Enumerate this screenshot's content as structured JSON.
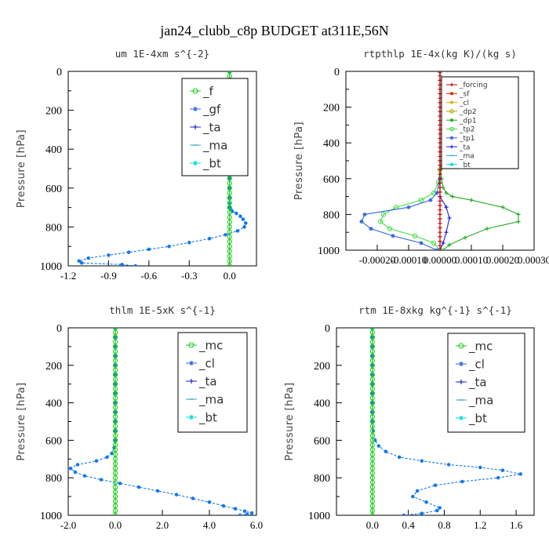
{
  "figure": {
    "title": "jan24_clubb_c8p  BUDGET at311E,56N"
  },
  "chart_data": [
    {
      "type": "line",
      "title": "um   1E-4xm s^{-2}",
      "ylabel": "Pressure [hPa]",
      "xlim": [
        -1.2,
        0.2
      ],
      "ylim": [
        1000,
        0
      ],
      "xticks": [
        -1.2,
        -0.9,
        -0.6,
        -0.3,
        0.0
      ],
      "xtick_labels": [
        "-1.2",
        "-0.9",
        "-0.6",
        "-0.3",
        "0.0"
      ],
      "yticks": [
        0,
        200,
        400,
        600,
        800,
        1000
      ],
      "ytick_labels": [
        "0",
        "200",
        "400",
        "600",
        "800",
        "1000"
      ],
      "legend": {
        "position": "top-right",
        "font_size": 15,
        "entries": [
          {
            "label": "_f",
            "color": "#22cc22",
            "marker": "circle"
          },
          {
            "label": "_gf",
            "color": "#3366dd",
            "marker": "star"
          },
          {
            "label": "_ta",
            "color": "#2222cc",
            "marker": "plus"
          },
          {
            "label": "_ma",
            "color": "#33aacc",
            "marker": "dash"
          },
          {
            "label": "_bt",
            "color": "#00dddd",
            "marker": "star"
          }
        ]
      },
      "series": [
        {
          "label": "_ma",
          "color": "#1177ee",
          "marker": "dot",
          "x": [
            0,
            0,
            0,
            0,
            0,
            0,
            0,
            0,
            0,
            0,
            0,
            0,
            0,
            0,
            0,
            0,
            0.01,
            0.02,
            0.05,
            0.08,
            0.1,
            0.12,
            0.11,
            0.06,
            -0.03,
            -0.15,
            -0.3,
            -0.45,
            -0.6,
            -0.75,
            -0.9,
            -1.05,
            -1.12,
            -1.1,
            -0.8,
            -0.7
          ],
          "y": [
            0,
            50,
            100,
            150,
            200,
            250,
            300,
            350,
            400,
            450,
            500,
            550,
            600,
            650,
            680,
            700,
            710,
            720,
            730,
            745,
            760,
            780,
            800,
            820,
            840,
            860,
            880,
            900,
            915,
            930,
            945,
            960,
            975,
            985,
            993,
            1000
          ]
        },
        {
          "label": "_f",
          "color": "#22cc22",
          "marker": "circle",
          "x": [
            0,
            0,
            0,
            0,
            0,
            0,
            0,
            0,
            0,
            0,
            0,
            0,
            0,
            0,
            0,
            0,
            0,
            0,
            0,
            0,
            0,
            0,
            0,
            0,
            0,
            0,
            0,
            0,
            0,
            0,
            0,
            0,
            0,
            0,
            0,
            0,
            0,
            0,
            0,
            0,
            0
          ],
          "y": [
            0,
            25,
            50,
            75,
            100,
            125,
            150,
            175,
            200,
            225,
            250,
            275,
            300,
            325,
            350,
            375,
            400,
            425,
            450,
            475,
            500,
            525,
            550,
            575,
            600,
            625,
            650,
            675,
            700,
            725,
            750,
            775,
            800,
            825,
            850,
            875,
            900,
            925,
            950,
            975,
            1000
          ]
        }
      ]
    },
    {
      "type": "line",
      "title": "rtpthlp   1E-4x(kg K)/(kg s)",
      "ylabel": "Pressure [hPa]",
      "xlim": [
        -0.0003,
        0.0003
      ],
      "ylim": [
        1000,
        0
      ],
      "xticks": [
        -0.0002,
        -0.0001,
        0.0,
        0.0001,
        0.0002,
        0.0003
      ],
      "xtick_labels": [
        "-0.00020",
        "-0.00010",
        "0.00000",
        "0.00010",
        "0.00020",
        "0.00030"
      ],
      "yticks": [
        0,
        200,
        400,
        600,
        800,
        1000
      ],
      "ytick_labels": [
        "0",
        "200",
        "400",
        "600",
        "800",
        "1000"
      ],
      "legend": {
        "position": "top-right",
        "font_size": 9,
        "entries": [
          {
            "label": "_forcing",
            "color": "#cc0000",
            "marker": "plus"
          },
          {
            "label": "_sf",
            "color": "#ee2200",
            "marker": "star"
          },
          {
            "label": "_cl",
            "color": "#eeaa00",
            "marker": "star"
          },
          {
            "label": "_dp2",
            "color": "#aaaa00",
            "marker": "circle"
          },
          {
            "label": "_dp1",
            "color": "#22aa22",
            "marker": "star"
          },
          {
            "label": "_tp2",
            "color": "#44dd44",
            "marker": "circle"
          },
          {
            "label": "_tp1",
            "color": "#3366dd",
            "marker": "star"
          },
          {
            "label": "_ta",
            "color": "#2222cc",
            "marker": "plus"
          },
          {
            "label": "_ma",
            "color": "#33aacc",
            "marker": "dash"
          },
          {
            "label": "_bt",
            "color": "#00dddd",
            "marker": "star"
          }
        ]
      },
      "series": [
        {
          "label": "_dp1",
          "color": "#22aa22",
          "marker": "plus",
          "x": [
            0,
            0,
            5e-06,
            1e-05,
            2e-05,
            4e-05,
            0.0001,
            0.0002,
            0.00025,
            0.00025,
            0.00015,
            8e-05,
            3e-05,
            1e-05
          ],
          "y": [
            0,
            500,
            600,
            650,
            680,
            700,
            720,
            760,
            800,
            840,
            880,
            930,
            970,
            1000
          ]
        },
        {
          "label": "_tp2",
          "color": "#44dd44",
          "marker": "circle",
          "x": [
            0,
            0,
            -5e-06,
            -2e-05,
            -6e-05,
            -0.00014,
            -0.00018,
            -0.00019,
            -0.00016,
            -8e-05,
            -2e-05,
            0
          ],
          "y": [
            0,
            550,
            620,
            680,
            720,
            760,
            800,
            840,
            880,
            920,
            960,
            1000
          ]
        },
        {
          "label": "_tp1",
          "color": "#3366dd",
          "marker": "star",
          "x": [
            0,
            0,
            -1e-05,
            -3e-05,
            -0.0001,
            -0.00024,
            -0.00025,
            -0.00022,
            -0.00015,
            -6e-05,
            -1e-05
          ],
          "y": [
            0,
            600,
            680,
            720,
            760,
            800,
            840,
            880,
            920,
            960,
            1000
          ]
        },
        {
          "label": "_ta",
          "color": "#2222cc",
          "marker": "plus",
          "x": [
            0,
            0,
            2e-05,
            3e-05,
            2e-05,
            1e-05,
            0
          ],
          "y": [
            0,
            700,
            760,
            820,
            900,
            960,
            1000
          ]
        },
        {
          "label": "_forcing",
          "color": "#cc0000",
          "marker": "plus",
          "x": [
            0,
            0,
            0,
            0,
            0,
            0,
            0,
            0,
            0,
            0,
            0,
            0,
            0,
            0,
            0,
            0,
            0,
            0,
            0,
            0,
            0,
            0,
            0,
            0,
            0,
            0,
            0,
            0,
            0,
            0,
            0,
            0,
            0,
            0,
            0,
            0,
            0,
            0,
            0,
            0,
            0
          ],
          "y": [
            0,
            25,
            50,
            75,
            100,
            125,
            150,
            175,
            200,
            225,
            250,
            275,
            300,
            325,
            350,
            375,
            400,
            425,
            450,
            475,
            500,
            525,
            550,
            575,
            600,
            625,
            650,
            675,
            700,
            725,
            750,
            775,
            800,
            825,
            850,
            875,
            900,
            925,
            950,
            975,
            1000
          ]
        }
      ]
    },
    {
      "type": "line",
      "title": "thlm   1E-5xK s^{-1}",
      "ylabel": "Pressure [hPa]",
      "xlim": [
        -2.0,
        6.0
      ],
      "ylim": [
        1000,
        0
      ],
      "xticks": [
        -2.0,
        0.0,
        2.0,
        4.0,
        6.0
      ],
      "xtick_labels": [
        "-2.0",
        "0.0",
        "2.0",
        "4.0",
        "6.0"
      ],
      "yticks": [
        0,
        200,
        400,
        600,
        800,
        1000
      ],
      "ytick_labels": [
        "0",
        "200",
        "400",
        "600",
        "800",
        "1000"
      ],
      "legend": {
        "position": "top-right",
        "font_size": 15,
        "entries": [
          {
            "label": "_mc",
            "color": "#22cc22",
            "marker": "circle"
          },
          {
            "label": "_cl",
            "color": "#3366dd",
            "marker": "star"
          },
          {
            "label": "_ta",
            "color": "#2222cc",
            "marker": "plus"
          },
          {
            "label": "_ma",
            "color": "#33aacc",
            "marker": "dash"
          },
          {
            "label": "_bt",
            "color": "#00dddd",
            "marker": "star"
          }
        ]
      },
      "series": [
        {
          "label": "_ma",
          "color": "#1177ee",
          "marker": "dot",
          "x": [
            0,
            0,
            0,
            0,
            0,
            0,
            0,
            0,
            0,
            0,
            0,
            0,
            0,
            -0.05,
            -0.15,
            -0.35,
            -0.8,
            -1.6,
            -1.9,
            -1.7,
            -1.3,
            -0.6,
            0.2,
            1.0,
            1.8,
            2.6,
            3.3,
            4.0,
            4.6,
            5.1,
            5.5,
            5.8,
            5.6,
            5.3
          ],
          "y": [
            0,
            50,
            100,
            150,
            200,
            250,
            300,
            350,
            400,
            450,
            500,
            550,
            600,
            640,
            670,
            690,
            710,
            730,
            750,
            770,
            790,
            810,
            830,
            850,
            870,
            890,
            910,
            930,
            950,
            965,
            978,
            988,
            995,
            1000
          ]
        },
        {
          "label": "_mc",
          "color": "#22cc22",
          "marker": "circle",
          "x": [
            0,
            0,
            0,
            0,
            0,
            0,
            0,
            0,
            0,
            0,
            0,
            0,
            0,
            0,
            0,
            0,
            0,
            0,
            0,
            0,
            0,
            0,
            0,
            0,
            0,
            0,
            0,
            0,
            0,
            0,
            0,
            0,
            0,
            0,
            0,
            0,
            0,
            0,
            0,
            0,
            0
          ],
          "y": [
            0,
            25,
            50,
            75,
            100,
            125,
            150,
            175,
            200,
            225,
            250,
            275,
            300,
            325,
            350,
            375,
            400,
            425,
            450,
            475,
            500,
            525,
            550,
            575,
            600,
            625,
            650,
            675,
            700,
            725,
            750,
            775,
            800,
            825,
            850,
            875,
            900,
            925,
            950,
            975,
            1000
          ]
        }
      ]
    },
    {
      "type": "line",
      "title": "rtm   1E-8xkg kg^{-1} s^{-1}",
      "ylabel": "Pressure [hPa]",
      "xlim": [
        -0.4,
        1.8
      ],
      "ylim": [
        1000,
        0
      ],
      "xticks": [
        0.0,
        0.4,
        0.8,
        1.2,
        1.6
      ],
      "xtick_labels": [
        "0.0",
        "0.4",
        "0.8",
        "1.2",
        "1.6"
      ],
      "yticks": [
        0,
        200,
        400,
        600,
        800,
        1000
      ],
      "ytick_labels": [
        "0",
        "200",
        "400",
        "600",
        "800",
        "1000"
      ],
      "legend": {
        "position": "top-right",
        "font_size": 15,
        "entries": [
          {
            "label": "_mc",
            "color": "#22cc22",
            "marker": "circle"
          },
          {
            "label": "_cl",
            "color": "#3366dd",
            "marker": "star"
          },
          {
            "label": "_ta",
            "color": "#2222cc",
            "marker": "plus"
          },
          {
            "label": "_ma",
            "color": "#33aacc",
            "marker": "dash"
          },
          {
            "label": "_bt",
            "color": "#00dddd",
            "marker": "star"
          }
        ]
      },
      "series": [
        {
          "label": "_ma",
          "color": "#1177ee",
          "marker": "dot",
          "x": [
            0,
            0,
            0,
            0,
            0,
            0,
            0,
            0,
            0,
            0,
            0,
            0.01,
            0.03,
            0.07,
            0.15,
            0.3,
            0.55,
            0.85,
            1.2,
            1.45,
            1.65,
            1.4,
            1.0,
            0.7,
            0.5,
            0.45,
            0.6,
            0.75,
            0.72,
            0.55,
            0.35
          ],
          "y": [
            0,
            50,
            100,
            150,
            200,
            250,
            300,
            350,
            400,
            450,
            500,
            550,
            600,
            630,
            660,
            690,
            710,
            730,
            745,
            760,
            780,
            800,
            820,
            840,
            870,
            900,
            930,
            960,
            975,
            990,
            1000
          ]
        },
        {
          "label": "_mc",
          "color": "#22cc22",
          "marker": "circle",
          "x": [
            0,
            0,
            0,
            0,
            0,
            0,
            0,
            0,
            0,
            0,
            0,
            0,
            0,
            0,
            0,
            0,
            0,
            0,
            0,
            0,
            0,
            0,
            0,
            0,
            0,
            0,
            0,
            0,
            0,
            0,
            0,
            0,
            0,
            0,
            0,
            0,
            0,
            0,
            0,
            0,
            0
          ],
          "y": [
            0,
            25,
            50,
            75,
            100,
            125,
            150,
            175,
            200,
            225,
            250,
            275,
            300,
            325,
            350,
            375,
            400,
            425,
            450,
            475,
            500,
            525,
            550,
            575,
            600,
            625,
            650,
            675,
            700,
            725,
            750,
            775,
            800,
            825,
            850,
            875,
            900,
            925,
            950,
            975,
            1000
          ]
        }
      ]
    }
  ]
}
